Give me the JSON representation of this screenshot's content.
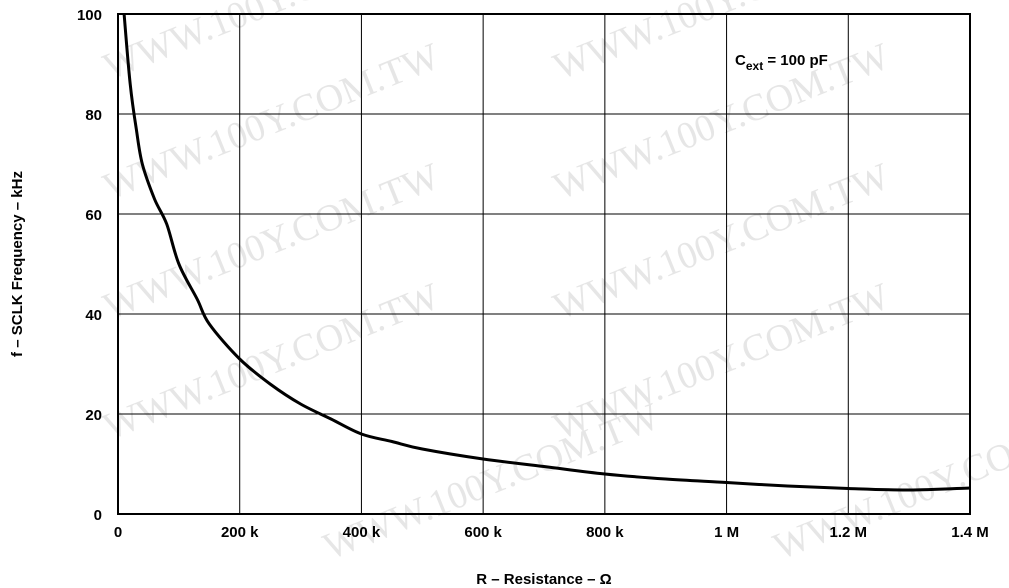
{
  "chart_data": {
    "type": "line",
    "xlabel": "R – Resistance – Ω",
    "ylabel": "f – SCLK Frequency – kHz",
    "xlim": [
      0,
      1400000
    ],
    "ylim": [
      0,
      100
    ],
    "x_ticks": [
      {
        "value": 0,
        "label": "0"
      },
      {
        "value": 200000,
        "label": "200 k"
      },
      {
        "value": 400000,
        "label": "400 k"
      },
      {
        "value": 600000,
        "label": "600 k"
      },
      {
        "value": 800000,
        "label": "800 k"
      },
      {
        "value": 1000000,
        "label": "1 M"
      },
      {
        "value": 1200000,
        "label": "1.2 M"
      },
      {
        "value": 1400000,
        "label": "1.4 M"
      }
    ],
    "y_ticks": [
      {
        "value": 0,
        "label": "0"
      },
      {
        "value": 20,
        "label": "20"
      },
      {
        "value": 40,
        "label": "40"
      },
      {
        "value": 60,
        "label": "60"
      },
      {
        "value": 80,
        "label": "80"
      },
      {
        "value": 100,
        "label": "100"
      }
    ],
    "grid": true,
    "annotation": {
      "main": "C",
      "sub": "ext",
      "rest": " = 100 pF"
    },
    "watermark": "WWW.100Y.COM.TW",
    "series": [
      {
        "color": "#000000",
        "points": [
          [
            10000,
            100
          ],
          [
            20000,
            86
          ],
          [
            30000,
            77
          ],
          [
            40000,
            70
          ],
          [
            60000,
            63
          ],
          [
            80000,
            58
          ],
          [
            100000,
            50
          ],
          [
            130000,
            43
          ],
          [
            150000,
            38
          ],
          [
            200000,
            31
          ],
          [
            250000,
            26
          ],
          [
            300000,
            22
          ],
          [
            350000,
            19
          ],
          [
            400000,
            16
          ],
          [
            450000,
            14.5
          ],
          [
            500000,
            13
          ],
          [
            600000,
            11
          ],
          [
            700000,
            9.5
          ],
          [
            800000,
            8
          ],
          [
            900000,
            7
          ],
          [
            1000000,
            6.3
          ],
          [
            1100000,
            5.6
          ],
          [
            1200000,
            5.1
          ],
          [
            1300000,
            4.8
          ],
          [
            1400000,
            5.2
          ]
        ]
      }
    ]
  }
}
